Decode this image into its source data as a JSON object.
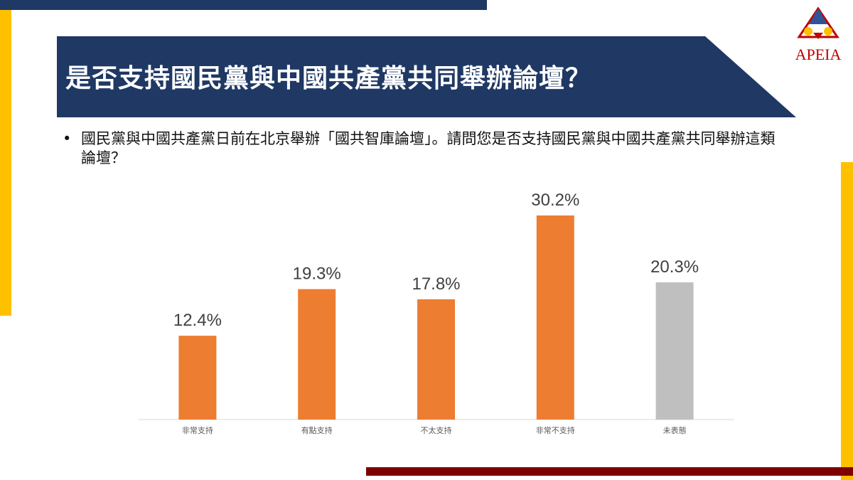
{
  "slide": {
    "title": "是否支持國民黨與中國共產黨共同舉辦論壇？",
    "bullet": "國民黨與中國共產黨日前在北京舉辦「國共智庫論壇」。請問您是否支持國民黨與中國共產黨共同舉辦這類論壇？",
    "logo_text": "APEIA"
  },
  "colors": {
    "navy": "#1f3864",
    "gold": "#ffc000",
    "maroon": "#7f0000",
    "orange": "#ed7d31",
    "gray": "#bfbfbf"
  },
  "chart_data": {
    "type": "bar",
    "categories": [
      "非常支持",
      "有點支持",
      "不太支持",
      "非常不支持",
      "未表態"
    ],
    "values": [
      12.4,
      19.3,
      17.8,
      30.2,
      20.3
    ],
    "labels": [
      "12.4%",
      "19.3%",
      "17.8%",
      "30.2%",
      "20.3%"
    ],
    "bar_colors": [
      "#ed7d31",
      "#ed7d31",
      "#ed7d31",
      "#ed7d31",
      "#bfbfbf"
    ],
    "ylim": [
      0,
      30.2
    ],
    "grid": false,
    "legend": "none"
  }
}
